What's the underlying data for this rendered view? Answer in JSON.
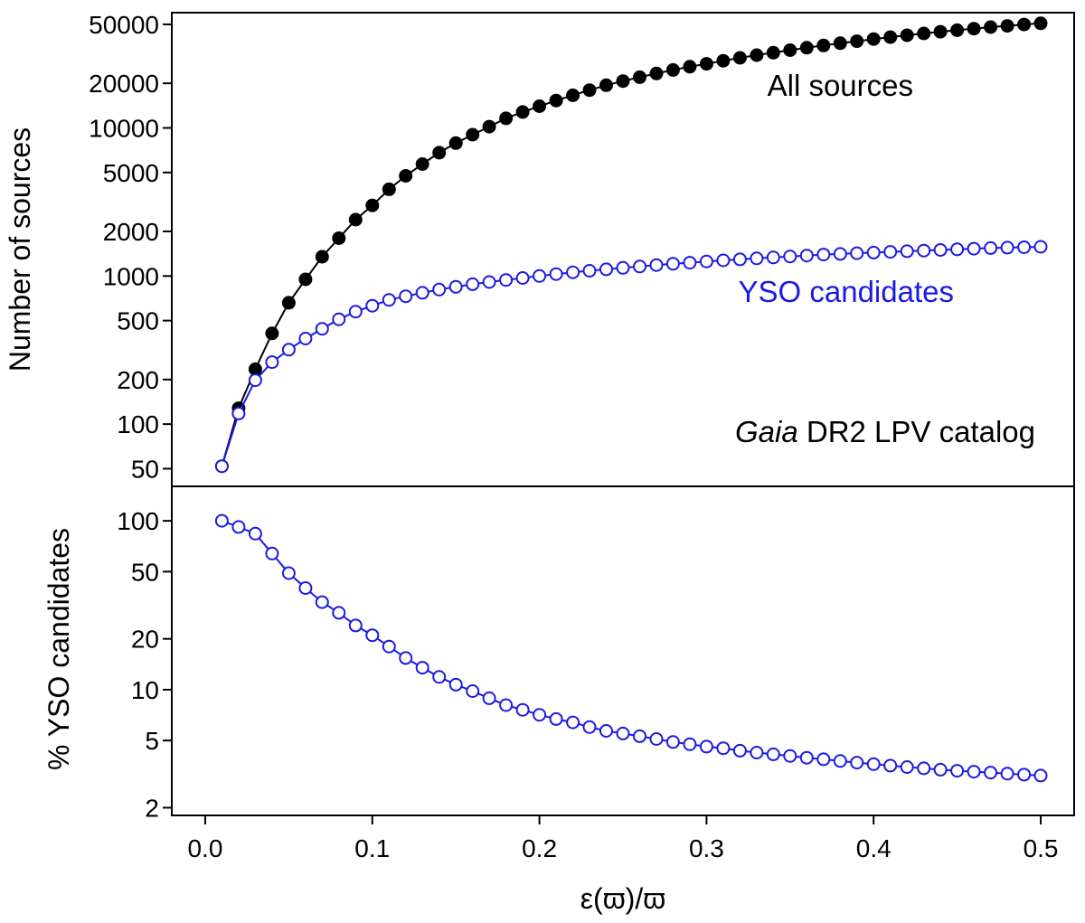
{
  "chart_data": [
    {
      "type": "line",
      "panel": "top",
      "ylabel": "Number of sources",
      "yscale": "log",
      "ylim": [
        38,
        60000
      ],
      "yticks": [
        50,
        100,
        200,
        500,
        1000,
        2000,
        5000,
        10000,
        20000,
        50000
      ],
      "xlim": [
        -0.02,
        0.52
      ],
      "x": [
        0.01,
        0.02,
        0.03,
        0.04,
        0.05,
        0.06,
        0.07,
        0.08,
        0.09,
        0.1,
        0.11,
        0.12,
        0.13,
        0.14,
        0.15,
        0.16,
        0.17,
        0.18,
        0.19,
        0.2,
        0.21,
        0.22,
        0.23,
        0.24,
        0.25,
        0.26,
        0.27,
        0.28,
        0.29,
        0.3,
        0.31,
        0.32,
        0.33,
        0.34,
        0.35,
        0.36,
        0.37,
        0.38,
        0.39,
        0.4,
        0.41,
        0.42,
        0.43,
        0.44,
        0.45,
        0.46,
        0.47,
        0.48,
        0.49,
        0.5
      ],
      "series": [
        {
          "name": "All sources",
          "color": "#000000",
          "marker": "filled-circle",
          "values": [
            52,
            128,
            235,
            410,
            660,
            950,
            1350,
            1800,
            2400,
            3000,
            3850,
            4750,
            5700,
            6800,
            7900,
            9000,
            10200,
            11600,
            12800,
            14000,
            15300,
            16600,
            18000,
            19400,
            20700,
            22000,
            23300,
            24600,
            25900,
            27100,
            28400,
            29700,
            31000,
            32200,
            33500,
            34800,
            36000,
            37300,
            38500,
            39800,
            41000,
            42200,
            43400,
            44600,
            45700,
            46800,
            47900,
            48900,
            49900,
            50800
          ]
        },
        {
          "name": "YSO candidates",
          "color": "#1a1ae6",
          "marker": "open-circle",
          "values": [
            52,
            118,
            198,
            262,
            318,
            378,
            440,
            510,
            575,
            630,
            690,
            730,
            770,
            810,
            845,
            880,
            910,
            940,
            970,
            1000,
            1030,
            1060,
            1085,
            1110,
            1135,
            1160,
            1185,
            1210,
            1230,
            1255,
            1275,
            1295,
            1315,
            1335,
            1355,
            1375,
            1395,
            1410,
            1425,
            1440,
            1455,
            1470,
            1485,
            1500,
            1515,
            1530,
            1545,
            1555,
            1565,
            1575
          ]
        }
      ],
      "annotations": {
        "all_sources": "All sources",
        "yso": "YSO candidates",
        "catalog_italic": "Gaia",
        "catalog_rest": " DR2 LPV catalog"
      }
    },
    {
      "type": "line",
      "panel": "bottom",
      "ylabel": "% YSO candidates",
      "xlabel": "ε(ϖ)/ϖ",
      "yscale": "log",
      "ylim": [
        1.8,
        160
      ],
      "yticks": [
        2,
        5,
        10,
        20,
        50,
        100
      ],
      "xlim": [
        -0.02,
        0.52
      ],
      "xticks": [
        0.0,
        0.1,
        0.2,
        0.3,
        0.4,
        0.5
      ],
      "xtick_labels": [
        "0.0",
        "0.1",
        "0.2",
        "0.3",
        "0.4",
        "0.5"
      ],
      "x": [
        0.01,
        0.02,
        0.03,
        0.04,
        0.05,
        0.06,
        0.07,
        0.08,
        0.09,
        0.1,
        0.11,
        0.12,
        0.13,
        0.14,
        0.15,
        0.16,
        0.17,
        0.18,
        0.19,
        0.2,
        0.21,
        0.22,
        0.23,
        0.24,
        0.25,
        0.26,
        0.27,
        0.28,
        0.29,
        0.3,
        0.31,
        0.32,
        0.33,
        0.34,
        0.35,
        0.36,
        0.37,
        0.38,
        0.39,
        0.4,
        0.41,
        0.42,
        0.43,
        0.44,
        0.45,
        0.46,
        0.47,
        0.48,
        0.49,
        0.5
      ],
      "series": [
        {
          "name": "% YSO candidates",
          "color": "#1a1ae6",
          "marker": "open-circle",
          "values": [
            100,
            92,
            84,
            64,
            49,
            40,
            33,
            28.5,
            24,
            21,
            18,
            15.4,
            13.5,
            11.9,
            10.7,
            9.8,
            8.9,
            8.1,
            7.6,
            7.1,
            6.7,
            6.4,
            6.0,
            5.7,
            5.5,
            5.3,
            5.1,
            4.9,
            4.75,
            4.6,
            4.5,
            4.35,
            4.24,
            4.14,
            4.05,
            3.95,
            3.87,
            3.78,
            3.7,
            3.62,
            3.55,
            3.48,
            3.42,
            3.36,
            3.31,
            3.27,
            3.23,
            3.18,
            3.14,
            3.1
          ]
        }
      ]
    }
  ]
}
